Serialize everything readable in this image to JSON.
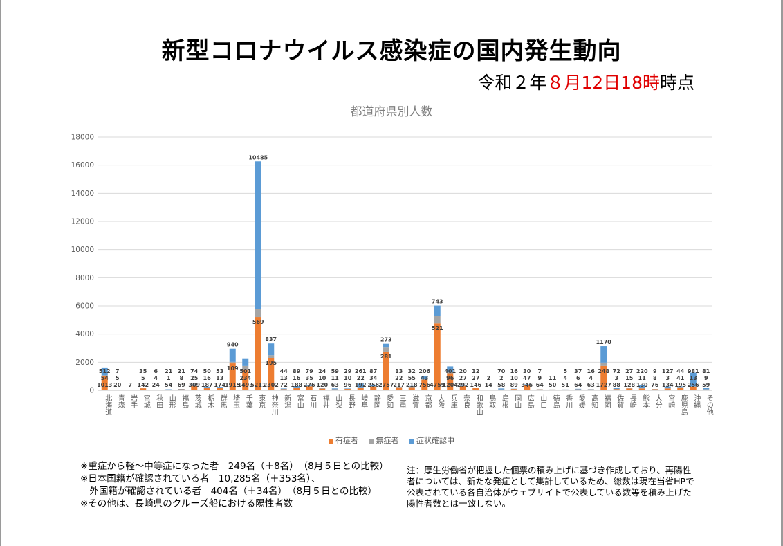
{
  "header": {
    "title": "新型コロナウイルス感染症の国内発生動向",
    "timestamp": {
      "prefix": "令和２年",
      "month": "８月",
      "day": "12日",
      "hour": "18時",
      "suffix": "時点"
    }
  },
  "colors": {
    "symptomatic": "#ed7d31",
    "asymptomatic": "#a5a5a5",
    "confirming": "#5b9bd5",
    "red_text": "#e00000"
  },
  "chart_data": {
    "type": "bar",
    "stacked": true,
    "title": "都道府県別人数",
    "ylim": [
      0,
      18000
    ],
    "yticks": [
      "0",
      "2000",
      "4000",
      "6000",
      "8000",
      "10000",
      "12000",
      "14000",
      "16000",
      "18000"
    ],
    "grid": true,
    "legend_position": "bottom",
    "categories": [
      "北海道",
      "青森",
      "岩手",
      "宮城",
      "秋田",
      "山形",
      "福島",
      "茨城",
      "栃木",
      "群馬",
      "埼玉",
      "千葉",
      "東京",
      "神奈川",
      "新潟",
      "富山",
      "石川",
      "福井",
      "山梨",
      "長野",
      "岐阜",
      "静岡",
      "愛知",
      "三重",
      "滋賀",
      "京都",
      "大阪",
      "兵庫",
      "奈良",
      "和歌山",
      "鳥取",
      "島根",
      "岡山",
      "広島",
      "山口",
      "徳島",
      "香川",
      "愛媛",
      "高知",
      "福岡",
      "佐賀",
      "長崎",
      "熊本",
      "大分",
      "宮崎",
      "鹿児島",
      "沖縄",
      "その他"
    ],
    "series": [
      {
        "name": "有症者",
        "values": [
          1013,
          20,
          7,
          142,
          24,
          54,
          69,
          309,
          187,
          174,
          1915,
          1493,
          5211,
          2302,
          72,
          188,
          276,
          120,
          63,
          96,
          192,
          256,
          2757,
          217,
          218,
          756,
          4759,
          1204,
          292,
          146,
          14,
          58,
          89,
          346,
          64,
          50,
          51,
          64,
          63,
          1727,
          88,
          128,
          130,
          76,
          134,
          195,
          256,
          59
        ]
      },
      {
        "name": "無症者",
        "values": [
          54,
          5,
          0,
          5,
          4,
          1,
          8,
          25,
          16,
          13,
          109,
          234,
          569,
          195,
          13,
          16,
          35,
          10,
          11,
          10,
          22,
          34,
          281,
          22,
          55,
          43,
          521,
          96,
          27,
          27,
          2,
          2,
          10,
          47,
          9,
          11,
          4,
          6,
          4,
          248,
          3,
          15,
          11,
          8,
          3,
          41,
          13,
          9
        ]
      },
      {
        "name": "症状確認中",
        "values": [
          512,
          7,
          0,
          35,
          6,
          21,
          21,
          74,
          50,
          53,
          940,
          501,
          10485,
          837,
          44,
          89,
          79,
          24,
          59,
          29,
          261,
          87,
          273,
          13,
          32,
          206,
          743,
          401,
          20,
          12,
          0,
          70,
          16,
          30,
          7,
          0,
          5,
          37,
          16,
          1170,
          72,
          27,
          220,
          9,
          127,
          44,
          981,
          81
        ]
      }
    ]
  },
  "notes_left": [
    "※重症から軽～中等症になった者　249名（＋8名）　（8月５日との比較）",
    "※日本国籍が確認されている者　10,285名（＋353名）、",
    "　外国籍が確認されている者　404名（＋34名）　（8月５日との比較）",
    "※その他は、長崎県のクルーズ船における陽性者数"
  ],
  "notes_right": [
    "注：厚生労働省が把握した個票の積み上げに基づき作成しており、再陽性",
    "者については、新たな発症として集計しているため、総数は現在当省HPで",
    "公表されている各自治体がウェブサイトで公表している数等を積み上げた",
    "陽性者数とは一致しない。"
  ]
}
